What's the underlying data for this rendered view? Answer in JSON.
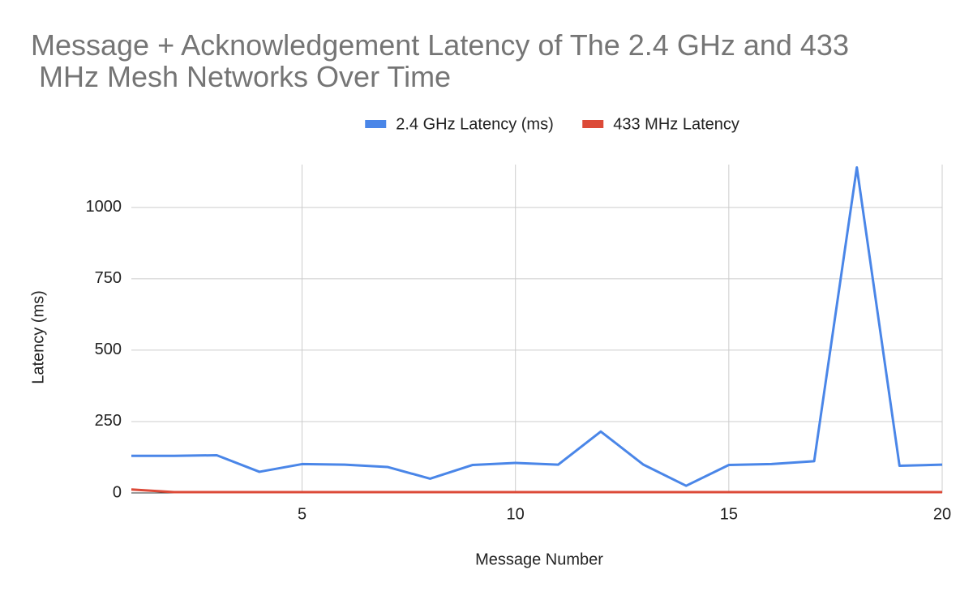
{
  "chart_data": {
    "type": "line",
    "title": "Message + Acknowledgement Latency of The 2.4 GHz and 433 MHz Mesh Networks Over Time",
    "x_label": "Message Number",
    "y_label": "Latency (ms)",
    "x": [
      1,
      2,
      3,
      4,
      5,
      6,
      7,
      8,
      9,
      10,
      11,
      12,
      13,
      14,
      15,
      16,
      17,
      18,
      19,
      20
    ],
    "series": [
      {
        "name": "2.4 GHz Latency (ms)",
        "color": "#4a86e8",
        "values": [
          130,
          130,
          132,
          74,
          101,
          99,
          91,
          50,
          98,
          105,
          99,
          215,
          99,
          25,
          98,
          101,
          111,
          1140,
          95,
          99
        ]
      },
      {
        "name": "433 MHz Latency",
        "color": "#dc4a38",
        "values": [
          12,
          3,
          3,
          3,
          3,
          3,
          3,
          3,
          3,
          3,
          3,
          3,
          3,
          3,
          3,
          3,
          3,
          3,
          3,
          3
        ]
      }
    ],
    "xlim": [
      1,
      20
    ],
    "xticks": [
      5,
      10,
      15,
      20
    ],
    "ylim": [
      0,
      1150
    ],
    "yticks": [
      0,
      250,
      500,
      750,
      1000
    ],
    "grid": true,
    "legend": "top"
  }
}
